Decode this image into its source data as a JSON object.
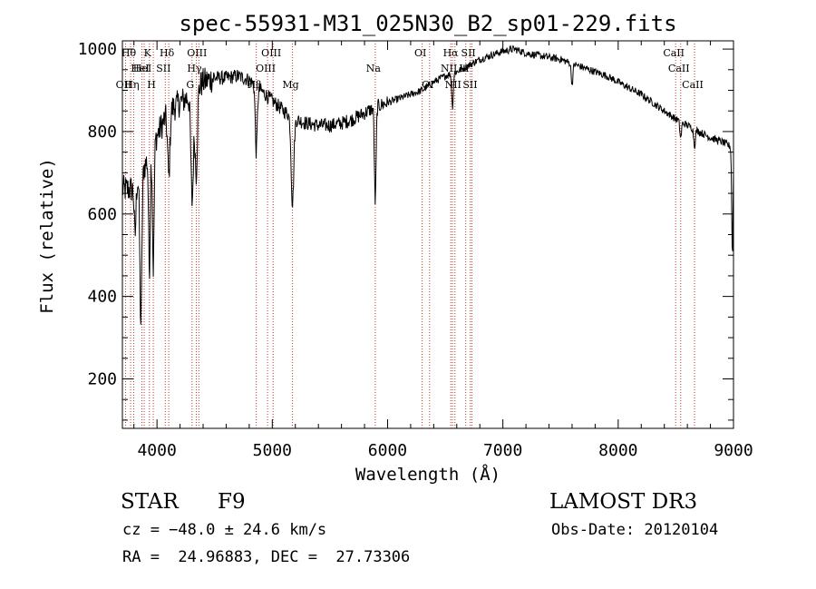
{
  "chart_data": {
    "type": "line",
    "title": "spec-55931-M31_025N30_B2_sp01-229.fits",
    "xlabel": "Wavelength (Å)",
    "ylabel": "Flux (relative)",
    "xlim": [
      3700,
      9000
    ],
    "ylim": [
      80,
      1020
    ],
    "xticks": [
      4000,
      5000,
      6000,
      7000,
      8000,
      9000
    ],
    "xtick_labels": [
      "4000",
      "5000",
      "6000",
      "7000",
      "8000",
      "9000"
    ],
    "yticks": [
      200,
      400,
      600,
      800,
      1000
    ],
    "ytick_labels": [
      "200",
      "400",
      "600",
      "800",
      "1000"
    ],
    "continuum": {
      "x": [
        3700,
        3800,
        3900,
        4000,
        4100,
        4200,
        4300,
        4400,
        4500,
        4600,
        4700,
        4800,
        4900,
        5000,
        5100,
        5200,
        5300,
        5400,
        5500,
        5600,
        5700,
        5800,
        5900,
        6000,
        6100,
        6200,
        6300,
        6400,
        6500,
        6600,
        6700,
        6800,
        6900,
        7000,
        7100,
        7200,
        7300,
        7400,
        7500,
        7600,
        7700,
        7800,
        7900,
        8000,
        8100,
        8200,
        8300,
        8400,
        8500,
        8600,
        8700,
        8800,
        8900,
        9000
      ],
      "y": [
        660,
        660,
        720,
        790,
        850,
        870,
        890,
        920,
        930,
        930,
        935,
        925,
        900,
        875,
        850,
        830,
        820,
        815,
        815,
        820,
        830,
        845,
        860,
        870,
        880,
        890,
        900,
        920,
        935,
        945,
        960,
        975,
        985,
        995,
        1000,
        990,
        985,
        980,
        975,
        965,
        955,
        945,
        935,
        920,
        905,
        890,
        870,
        850,
        830,
        815,
        800,
        785,
        775,
        760
      ]
    },
    "absorption_features": [
      {
        "x": 3934,
        "depth": 280,
        "width": 10
      },
      {
        "x": 3968,
        "depth": 300,
        "width": 10
      },
      {
        "x": 3860,
        "depth": 360,
        "width": 12
      },
      {
        "x": 3810,
        "depth": 120,
        "width": 10
      },
      {
        "x": 4102,
        "depth": 160,
        "width": 14
      },
      {
        "x": 4305,
        "depth": 260,
        "width": 16
      },
      {
        "x": 4340,
        "depth": 200,
        "width": 14
      },
      {
        "x": 4861,
        "depth": 160,
        "width": 12
      },
      {
        "x": 5175,
        "depth": 210,
        "width": 16
      },
      {
        "x": 5893,
        "depth": 230,
        "width": 10
      },
      {
        "x": 6563,
        "depth": 80,
        "width": 10
      },
      {
        "x": 7600,
        "depth": 50,
        "width": 10
      },
      {
        "x": 8542,
        "depth": 40,
        "width": 10
      },
      {
        "x": 8662,
        "depth": 40,
        "width": 10
      },
      {
        "x": 8990,
        "depth": 260,
        "width": 8
      }
    ],
    "line_markers": [
      {
        "x": 3727,
        "label": "OII",
        "row": 2
      },
      {
        "x": 3771,
        "label": "Hθ",
        "row": 0
      },
      {
        "x": 3798,
        "label": "Hη",
        "row": 2
      },
      {
        "x": 3869,
        "label": "HeI",
        "row": 1
      },
      {
        "x": 3889,
        "label": "HeI",
        "row": 1
      },
      {
        "x": 3934,
        "label": "K",
        "row": 0
      },
      {
        "x": 3968,
        "label": "H",
        "row": 2
      },
      {
        "x": 4072,
        "label": "SII",
        "row": 1
      },
      {
        "x": 4102,
        "label": "Hδ",
        "row": 0
      },
      {
        "x": 4304,
        "label": "G",
        "row": 2
      },
      {
        "x": 4341,
        "label": "Hγ",
        "row": 1
      },
      {
        "x": 4363,
        "label": "OIII",
        "row": 0
      },
      {
        "x": 4861,
        "label": "Hβ",
        "row": 2
      },
      {
        "x": 4959,
        "label": "OIII",
        "row": 1
      },
      {
        "x": 5007,
        "label": "OIII",
        "row": 0
      },
      {
        "x": 5175,
        "label": "Mg",
        "row": 2
      },
      {
        "x": 5893,
        "label": "Na",
        "row": 1
      },
      {
        "x": 6300,
        "label": "OI",
        "row": 0
      },
      {
        "x": 6364,
        "label": "OI",
        "row": 2
      },
      {
        "x": 6548,
        "label": "NII",
        "row": 1
      },
      {
        "x": 6563,
        "label": "Hα",
        "row": 0
      },
      {
        "x": 6584,
        "label": "NII",
        "row": 2
      },
      {
        "x": 6678,
        "label": "Li",
        "row": 1
      },
      {
        "x": 6717,
        "label": "SII",
        "row": 0
      },
      {
        "x": 6731,
        "label": "SII",
        "row": 2
      },
      {
        "x": 8498,
        "label": "CaII",
        "row": 0
      },
      {
        "x": 8542,
        "label": "CaII",
        "row": 1
      },
      {
        "x": 8662,
        "label": "CaII",
        "row": 2
      }
    ]
  },
  "info": {
    "object_class": "STAR",
    "subclass": "F9",
    "survey": "LAMOST DR3",
    "redshift": "cz = −48.0 ± 24.6 km/s",
    "obs_date": "Obs-Date: 20120104",
    "coordinates": "RA =  24.96883, DEC =  27.73306"
  }
}
